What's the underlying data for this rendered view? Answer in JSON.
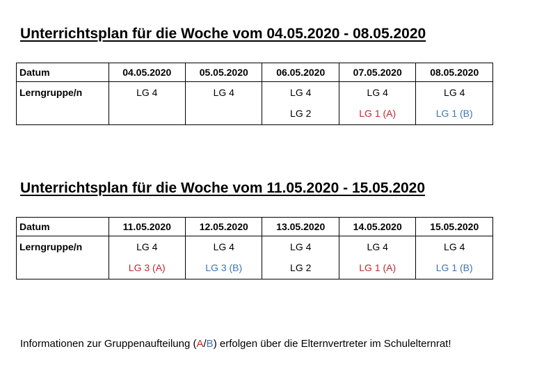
{
  "week1": {
    "title": "Unterrichtsplan für die Woche vom 04.05.2020 - 08.05.2020",
    "row_labels": {
      "date": "Datum",
      "groups": "Lerngruppe/n"
    },
    "days": [
      {
        "date": "04.05.2020",
        "groups": [
          {
            "text": "LG 4",
            "color": "#000000"
          }
        ]
      },
      {
        "date": "05.05.2020",
        "groups": [
          {
            "text": "LG 4",
            "color": "#000000"
          }
        ]
      },
      {
        "date": "06.05.2020",
        "groups": [
          {
            "text": "LG 4",
            "color": "#000000"
          },
          {
            "text": "LG 2",
            "color": "#000000"
          }
        ]
      },
      {
        "date": "07.05.2020",
        "groups": [
          {
            "text": "LG 4",
            "color": "#000000"
          },
          {
            "text": "LG 1 (A)",
            "color": "#c0272d"
          }
        ]
      },
      {
        "date": "08.05.2020",
        "groups": [
          {
            "text": "LG 4",
            "color": "#000000"
          },
          {
            "text": "LG 1 (B)",
            "color": "#3c74b4"
          }
        ]
      }
    ]
  },
  "week2": {
    "title": "Unterrichtsplan für die Woche vom 11.05.2020 - 15.05.2020",
    "row_labels": {
      "date": "Datum",
      "groups": "Lerngruppe/n"
    },
    "days": [
      {
        "date": "11.05.2020",
        "groups": [
          {
            "text": "LG 4",
            "color": "#000000"
          },
          {
            "text": "LG 3 (A)",
            "color": "#c0272d"
          }
        ]
      },
      {
        "date": "12.05.2020",
        "groups": [
          {
            "text": "LG 4",
            "color": "#000000"
          },
          {
            "text": "LG 3 (B)",
            "color": "#3c74b4"
          }
        ]
      },
      {
        "date": "13.05.2020",
        "groups": [
          {
            "text": "LG 4",
            "color": "#000000"
          },
          {
            "text": "LG 2",
            "color": "#000000"
          }
        ]
      },
      {
        "date": "14.05.2020",
        "groups": [
          {
            "text": "LG 4",
            "color": "#000000"
          },
          {
            "text": "LG 1 (A)",
            "color": "#c0272d"
          }
        ]
      },
      {
        "date": "15.05.2020",
        "groups": [
          {
            "text": "LG 4",
            "color": "#000000"
          },
          {
            "text": "LG 1 (B)",
            "color": "#3c74b4"
          }
        ]
      }
    ]
  },
  "footer": {
    "before": "Informationen zur Gruppenaufteilung (",
    "a": "A",
    "slash": "/",
    "b": "B",
    "after": ") erfolgen über die Elternvertreter im Schulelternrat!",
    "color_a": "#c0272d",
    "color_b": "#3c74b4"
  }
}
